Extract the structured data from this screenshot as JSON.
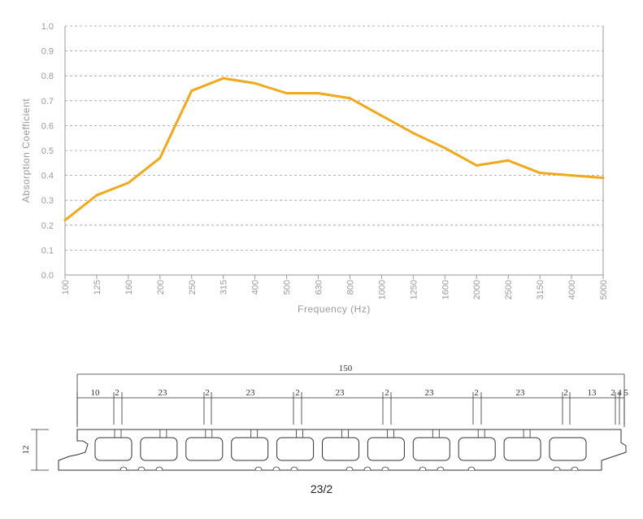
{
  "chart_data": {
    "type": "line",
    "categories": [
      "100",
      "125",
      "160",
      "200",
      "250",
      "315",
      "400",
      "500",
      "630",
      "800",
      "1000",
      "1250",
      "1600",
      "2000",
      "2500",
      "3150",
      "4000",
      "5000"
    ],
    "series": [
      {
        "values": [
          0.22,
          0.32,
          0.37,
          0.47,
          0.74,
          0.79,
          0.77,
          0.73,
          0.73,
          0.71,
          0.64,
          0.57,
          0.51,
          0.44,
          0.46,
          0.41,
          0.4,
          0.39
        ]
      }
    ],
    "title": "",
    "xlabel": "Frequency (Hz)",
    "ylabel": "Absorption Coefficient",
    "ylim": [
      0,
      1.0
    ],
    "yticks": [
      "0.0",
      "0.1",
      "0.2",
      "0.3",
      "0.4",
      "0.5",
      "0.6",
      "0.7",
      "0.8",
      "0.9",
      "1.0"
    ],
    "grid": true,
    "line_color": "#f0a81c",
    "grid_color": "#9a9a9a"
  },
  "profile": {
    "height_label": "12",
    "total_width_label": "150",
    "segment_labels": [
      "10",
      "2",
      "23",
      "2",
      "23",
      "2",
      "23",
      "2",
      "23",
      "2",
      "23",
      "2",
      "13",
      "2",
      "4",
      "5"
    ],
    "cavity_count": 11,
    "caption": "23/2"
  }
}
